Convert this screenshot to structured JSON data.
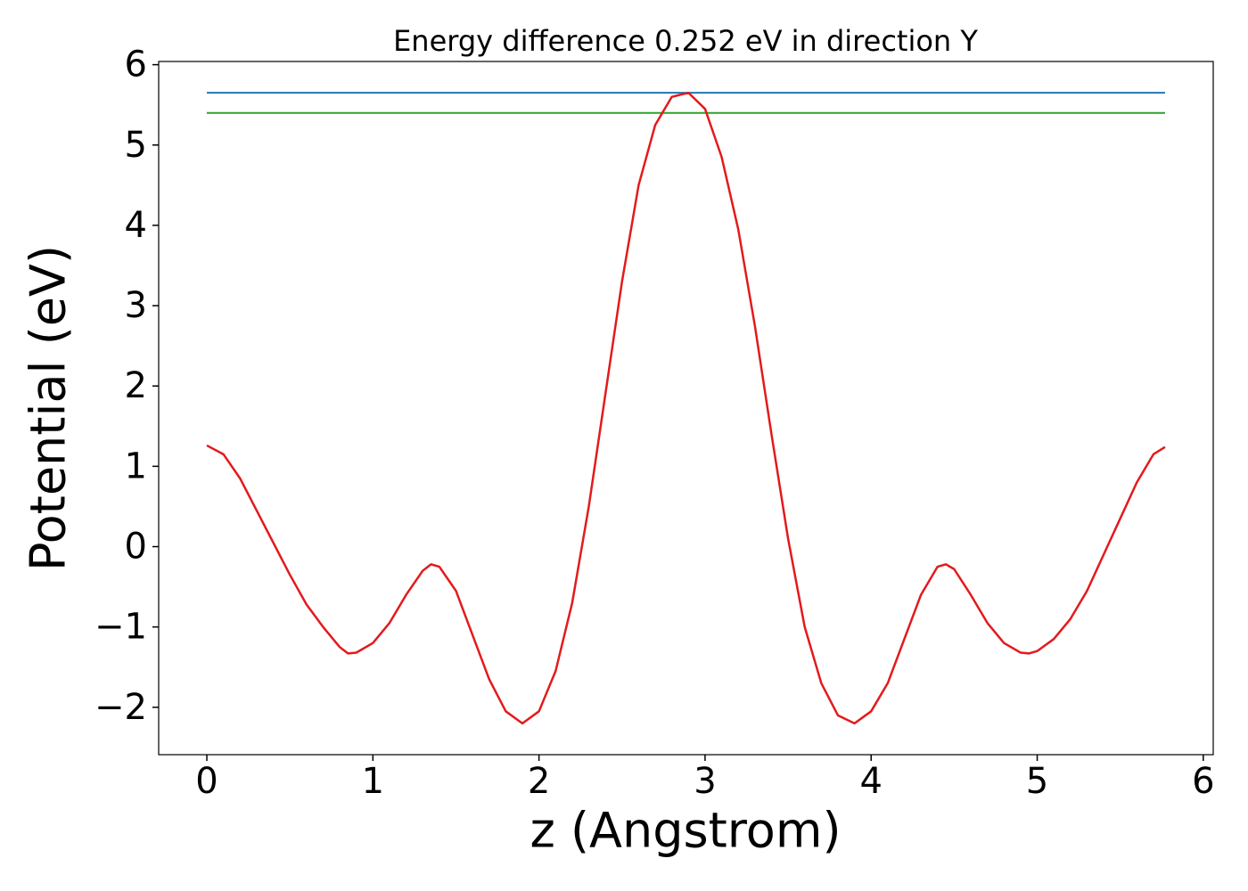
{
  "chart_data": {
    "type": "line",
    "title": "Energy difference 0.252 eV in direction Y",
    "xlabel": "z (Angstrom)",
    "ylabel": "Potential (eV)",
    "xlim": [
      -0.29,
      6.06
    ],
    "ylim": [
      -2.59,
      6.04
    ],
    "xticks": [
      0,
      1,
      2,
      3,
      4,
      5,
      6
    ],
    "yticks": [
      {
        "value": -2,
        "label": "−2"
      },
      {
        "value": -1,
        "label": "−1"
      },
      0,
      1,
      2,
      3,
      4,
      5,
      6
    ],
    "grid": false,
    "series": [
      {
        "color": "#1f77b4",
        "x": [
          0,
          5.77
        ],
        "values": [
          5.65,
          5.65
        ]
      },
      {
        "color": "#2ca02c",
        "x": [
          0,
          5.77
        ],
        "values": [
          5.4,
          5.4
        ]
      },
      {
        "color": "#e31a1c",
        "x": [
          0,
          0.1,
          0.2,
          0.3,
          0.4,
          0.5,
          0.6,
          0.7,
          0.8,
          0.85,
          0.9,
          1.0,
          1.1,
          1.2,
          1.3,
          1.35,
          1.4,
          1.5,
          1.6,
          1.7,
          1.8,
          1.9,
          2.0,
          2.1,
          2.2,
          2.3,
          2.4,
          2.5,
          2.6,
          2.7,
          2.8,
          2.9,
          3.0,
          3.1,
          3.2,
          3.3,
          3.4,
          3.5,
          3.6,
          3.7,
          3.8,
          3.9,
          4.0,
          4.1,
          4.2,
          4.3,
          4.4,
          4.45,
          4.5,
          4.6,
          4.7,
          4.8,
          4.9,
          4.95,
          5.0,
          5.1,
          5.2,
          5.3,
          5.4,
          5.5,
          5.6,
          5.7,
          5.77
        ],
        "values": [
          1.26,
          1.15,
          0.85,
          0.45,
          0.05,
          -0.35,
          -0.72,
          -1.0,
          -1.25,
          -1.33,
          -1.32,
          -1.2,
          -0.95,
          -0.6,
          -0.3,
          -0.22,
          -0.25,
          -0.55,
          -1.1,
          -1.65,
          -2.05,
          -2.2,
          -2.05,
          -1.55,
          -0.7,
          0.5,
          1.9,
          3.3,
          4.5,
          5.25,
          5.6,
          5.65,
          5.45,
          4.85,
          3.95,
          2.75,
          1.4,
          0.1,
          -1.0,
          -1.7,
          -2.1,
          -2.2,
          -2.05,
          -1.7,
          -1.15,
          -0.6,
          -0.25,
          -0.22,
          -0.28,
          -0.6,
          -0.95,
          -1.2,
          -1.32,
          -1.33,
          -1.3,
          -1.15,
          -0.9,
          -0.55,
          -0.1,
          0.35,
          0.8,
          1.15,
          1.24
        ]
      }
    ]
  }
}
